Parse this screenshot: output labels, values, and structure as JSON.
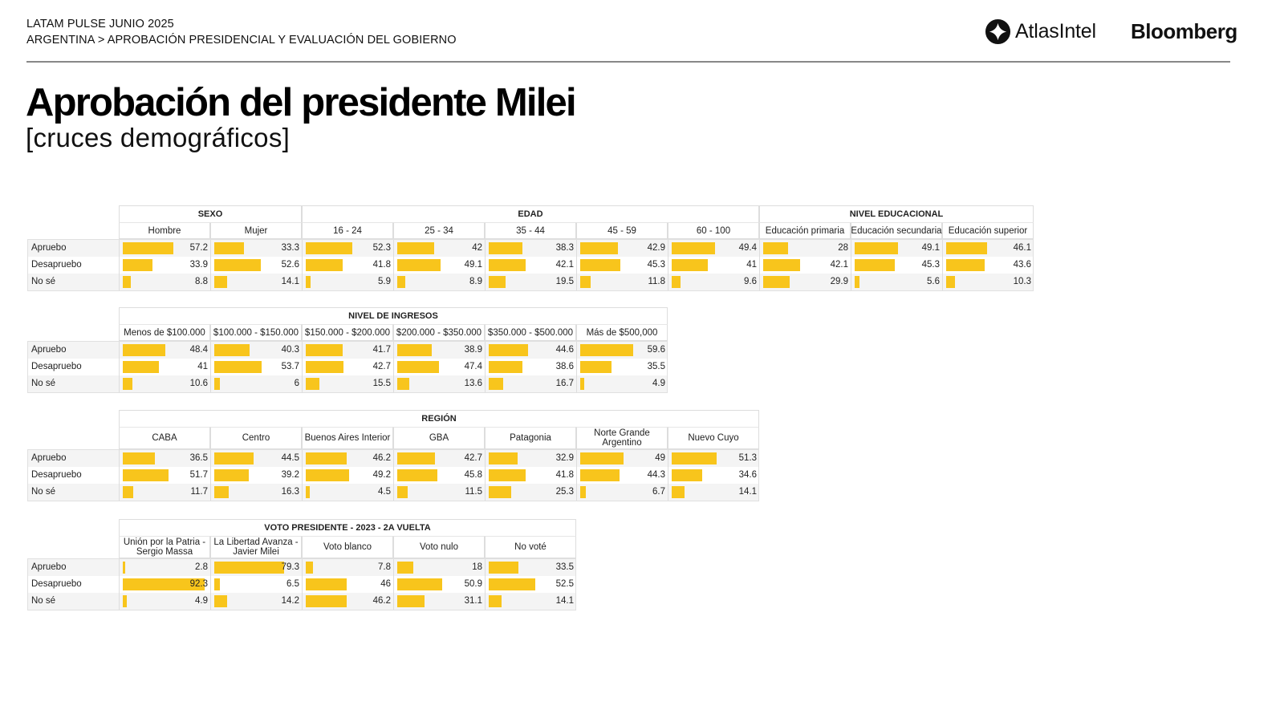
{
  "header": {
    "line1": "LATAM PULSE JUNIO 2025",
    "line2": "ARGENTINA > APROBACIÓN PRESIDENCIAL Y EVALUACIÓN DEL GOBIERNO",
    "logo_atlas": "AtlasIntel",
    "logo_bloomberg": "Bloomberg"
  },
  "title": "Aprobación del presidente Milei",
  "subtitle": "[cruces demográficos]",
  "colors": {
    "bar": "#f8c51c",
    "rule": "#888888"
  },
  "chart_data": [
    {
      "type": "table",
      "title": "Sexo / Edad / Nivel educacional",
      "row_labels": [
        "Apruebo",
        "Desapruebo",
        "No sé"
      ],
      "groups": [
        {
          "name": "SEXO",
          "columns": [
            {
              "label": "Hombre",
              "values": [
                57.2,
                33.9,
                8.8
              ]
            },
            {
              "label": "Mujer",
              "values": [
                33.3,
                52.6,
                14.1
              ]
            }
          ]
        },
        {
          "name": "EDAD",
          "columns": [
            {
              "label": "16 - 24",
              "values": [
                52.3,
                41.8,
                5.9
              ]
            },
            {
              "label": "25 - 34",
              "values": [
                42,
                49.1,
                8.9
              ]
            },
            {
              "label": "35 - 44",
              "values": [
                38.3,
                42.1,
                19.5
              ]
            },
            {
              "label": "45 - 59",
              "values": [
                42.9,
                45.3,
                11.8
              ]
            },
            {
              "label": "60 - 100",
              "values": [
                49.4,
                41,
                9.6
              ]
            }
          ]
        },
        {
          "name": "NIVEL EDUCACIONAL",
          "columns": [
            {
              "label": "Educación primaria",
              "values": [
                28,
                42.1,
                29.9
              ]
            },
            {
              "label": "Educación secundaria",
              "values": [
                49.1,
                45.3,
                5.6
              ]
            },
            {
              "label": "Educación superior",
              "values": [
                46.1,
                43.6,
                10.3
              ]
            }
          ]
        }
      ]
    },
    {
      "type": "table",
      "title": "Nivel de ingresos",
      "row_labels": [
        "Apruebo",
        "Desapruebo",
        "No sé"
      ],
      "groups": [
        {
          "name": "NIVEL DE INGRESOS",
          "columns": [
            {
              "label": "Menos de $100.000",
              "values": [
                48.4,
                41,
                10.6
              ]
            },
            {
              "label": "$100.000 - $150.000",
              "values": [
                40.3,
                53.7,
                6
              ]
            },
            {
              "label": "$150.000 - $200.000",
              "values": [
                41.7,
                42.7,
                15.5
              ]
            },
            {
              "label": "$200.000 - $350.000",
              "values": [
                38.9,
                47.4,
                13.6
              ]
            },
            {
              "label": "$350.000 - $500.000",
              "values": [
                44.6,
                38.6,
                16.7
              ]
            },
            {
              "label": "Más de $500,000",
              "values": [
                59.6,
                35.5,
                4.9
              ]
            }
          ]
        }
      ]
    },
    {
      "type": "table",
      "title": "Región",
      "row_labels": [
        "Apruebo",
        "Desapruebo",
        "No sé"
      ],
      "groups": [
        {
          "name": "REGIÓN",
          "columns": [
            {
              "label": "CABA",
              "values": [
                36.5,
                51.7,
                11.7
              ]
            },
            {
              "label": "Centro",
              "values": [
                44.5,
                39.2,
                16.3
              ]
            },
            {
              "label": "Buenos Aires Interior",
              "values": [
                46.2,
                49.2,
                4.5
              ]
            },
            {
              "label": "GBA",
              "values": [
                42.7,
                45.8,
                11.5
              ]
            },
            {
              "label": "Patagonia",
              "values": [
                32.9,
                41.8,
                25.3
              ]
            },
            {
              "label": "Norte Grande Argentino",
              "values": [
                49,
                44.3,
                6.7
              ]
            },
            {
              "label": "Nuevo Cuyo",
              "values": [
                51.3,
                34.6,
                14.1
              ]
            }
          ]
        }
      ]
    },
    {
      "type": "table",
      "title": "Voto presidente 2023",
      "row_labels": [
        "Apruebo",
        "Desapruebo",
        "No sé"
      ],
      "groups": [
        {
          "name": "VOTO PRESIDENTE - 2023 - 2A VUELTA",
          "columns": [
            {
              "label": "Unión por la Patria - Sergio Massa",
              "values": [
                2.8,
                92.3,
                4.9
              ]
            },
            {
              "label": "La Libertad Avanza - Javier Milei",
              "values": [
                79.3,
                6.5,
                14.2
              ]
            },
            {
              "label": "Voto blanco",
              "values": [
                7.8,
                46,
                46.2
              ]
            },
            {
              "label": "Voto nulo",
              "values": [
                18,
                50.9,
                31.1
              ]
            },
            {
              "label": "No voté",
              "values": [
                33.5,
                52.5,
                14.1
              ]
            }
          ]
        }
      ]
    }
  ]
}
